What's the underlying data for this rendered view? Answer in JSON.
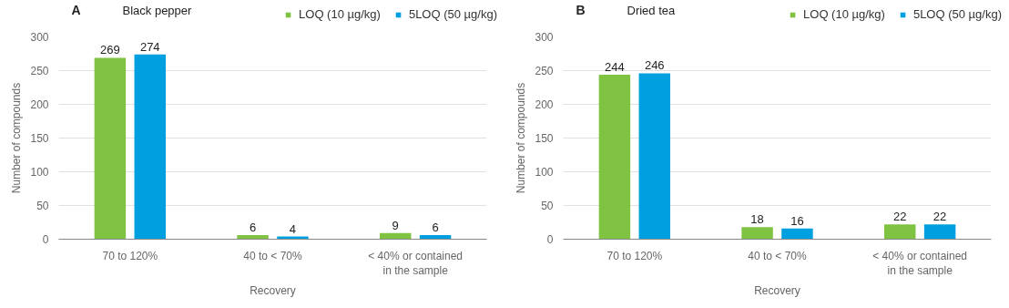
{
  "chart_data": [
    {
      "type": "bar",
      "title": "Black pepper",
      "annotations": [
        "A"
      ],
      "xlabel": "Recovery",
      "ylabel": "Number of compounds",
      "categories": [
        "70 to 120%",
        "40 to < 70%",
        "< 40% or contained\nin the sample"
      ],
      "series": [
        {
          "name": "LOQ (10 µg/kg)",
          "color": "#80c342",
          "values": [
            269,
            6,
            9
          ]
        },
        {
          "name": "5LOQ (50 µg/kg)",
          "color": "#00a0e0",
          "values": [
            274,
            4,
            6
          ]
        }
      ],
      "ylim": [
        0,
        300
      ],
      "yticks": [
        0,
        50,
        100,
        150,
        200,
        250,
        300
      ],
      "grid": "y",
      "legend": "top right",
      "data_labels": true
    },
    {
      "type": "bar",
      "title": "Dried tea",
      "annotations": [
        "B"
      ],
      "xlabel": "Recovery",
      "ylabel": "Number of compounds",
      "categories": [
        "70 to 120%",
        "40 to < 70%",
        "< 40% or contained\nin the sample"
      ],
      "series": [
        {
          "name": "LOQ (10 µg/kg)",
          "color": "#80c342",
          "values": [
            244,
            18,
            22
          ]
        },
        {
          "name": "5LOQ (50 µg/kg)",
          "color": "#00a0e0",
          "values": [
            246,
            16,
            22
          ]
        }
      ],
      "ylim": [
        0,
        300
      ],
      "yticks": [
        0,
        50,
        100,
        150,
        200,
        250,
        300
      ],
      "grid": "y",
      "legend": "top right",
      "data_labels": true
    }
  ]
}
